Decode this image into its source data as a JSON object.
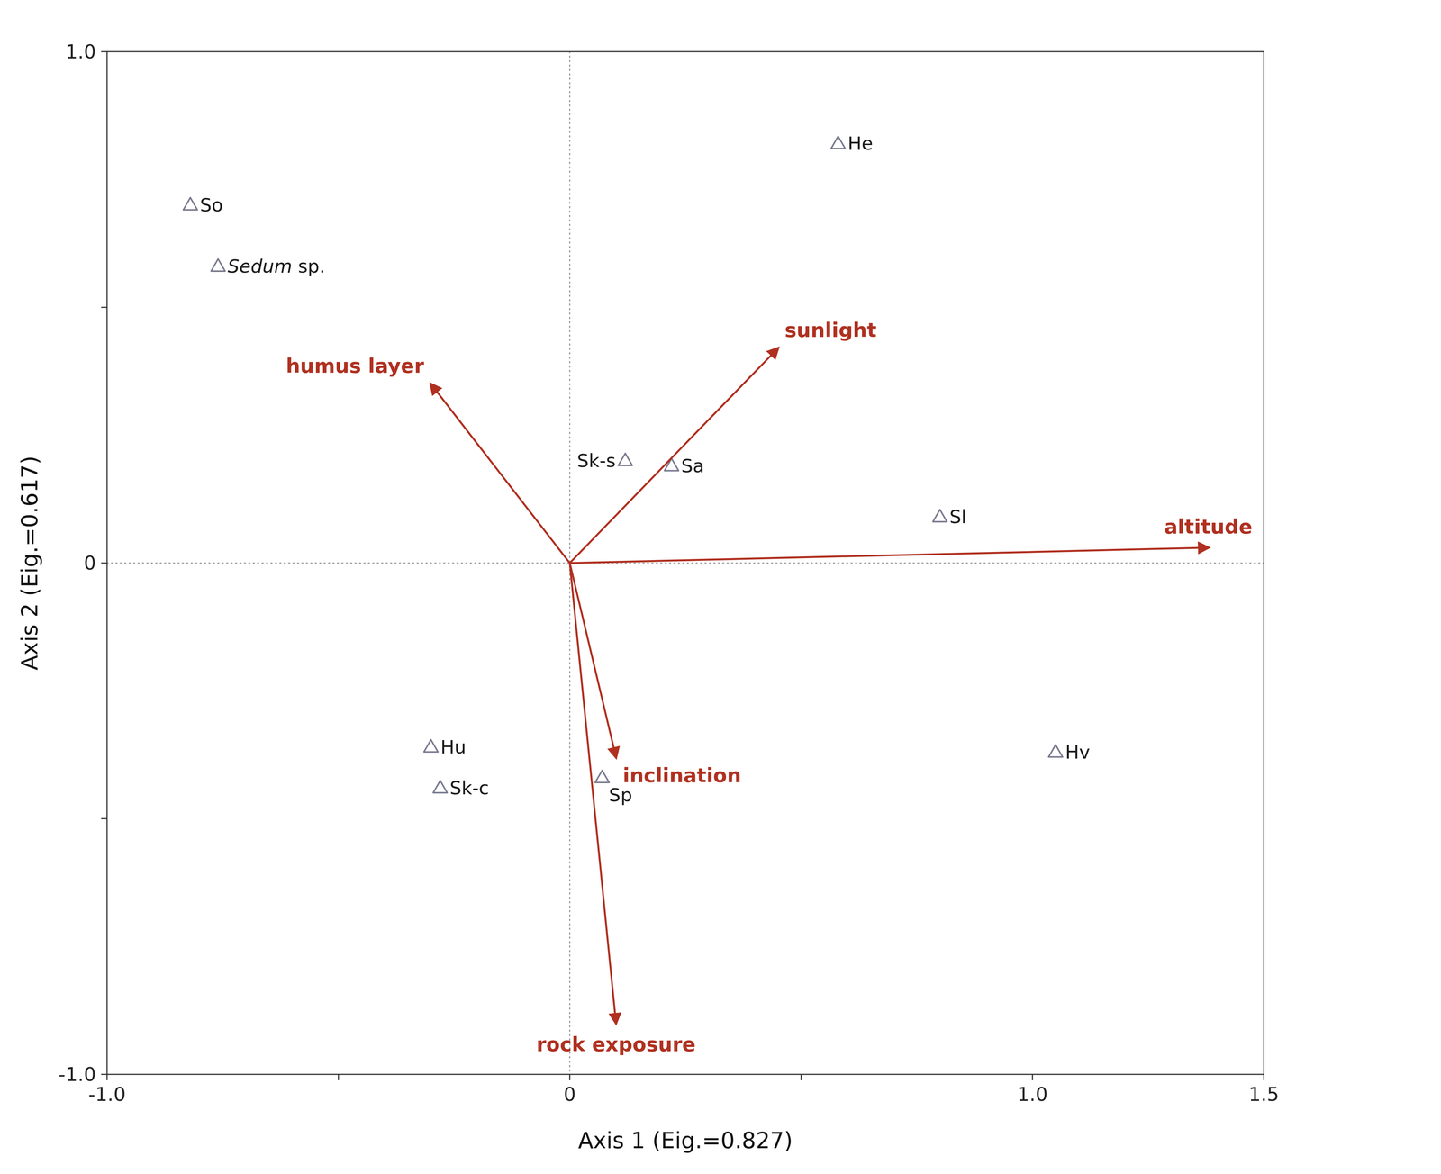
{
  "chart_data": {
    "type": "scatter",
    "xlabel": "Axis 1 (Eig.=0.827)",
    "ylabel": "Axis 2 (Eig.=0.617)",
    "xlim": [
      -1.0,
      1.5
    ],
    "ylim": [
      -1.0,
      1.0
    ],
    "xticks": [
      {
        "value": -1.0,
        "label": "-1.0"
      },
      {
        "value": -0.5,
        "label": null
      },
      0,
      {
        "value": 0.5,
        "label": null
      },
      {
        "value": 1.0,
        "label": "1.0"
      },
      1.5
    ],
    "yticks": [
      {
        "value": -1.0,
        "label": "-1.0"
      },
      {
        "value": -0.5,
        "label": null
      },
      0,
      {
        "value": 0.5,
        "label": null
      },
      {
        "value": 1.0,
        "label": "1.0"
      }
    ],
    "grid": false,
    "series": [
      {
        "type": "scatter",
        "marker": "triangle",
        "color": "#7a7a90",
        "labels": [
          "So",
          "Sedum sp.",
          "He",
          "Sk-s",
          "Sa",
          "Sl",
          "Hu",
          "Sk-c",
          "Sp",
          "Hv"
        ],
        "x": [
          -0.82,
          -0.76,
          0.58,
          0.12,
          0.22,
          0.8,
          -0.3,
          -0.28,
          0.07,
          1.05
        ],
        "values": [
          0.7,
          0.58,
          0.82,
          0.2,
          0.19,
          0.09,
          -0.36,
          -0.44,
          -0.42,
          -0.37
        ]
      },
      {
        "type": "arrow",
        "color": "#b03020",
        "labels": [
          "altitude",
          "sunlight",
          "humus layer",
          "inclination",
          "rock exposure"
        ],
        "x": [
          1.38,
          0.45,
          -0.3,
          0.1,
          0.1
        ],
        "values": [
          0.03,
          0.42,
          0.35,
          -0.38,
          -0.9
        ]
      }
    ]
  }
}
